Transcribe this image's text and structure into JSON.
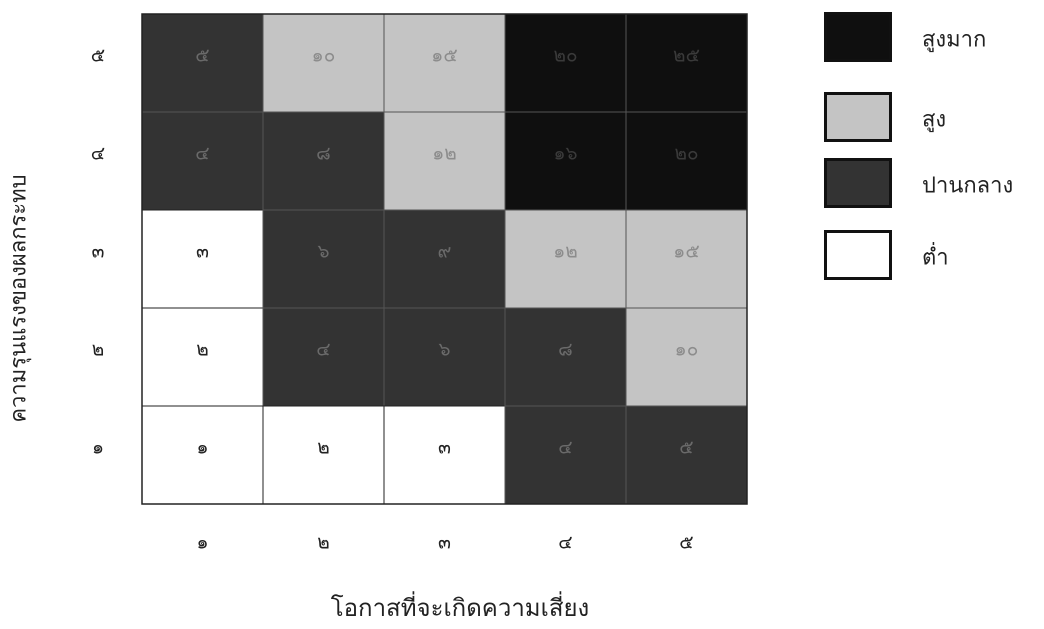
{
  "chart_data": {
    "type": "heatmap",
    "title": "",
    "xlabel": "โอกาสที่จะเกิดความเสี่ยง",
    "ylabel": "ความรุนแรงของผลกระทบ",
    "x_ticks": [
      "๑",
      "๒",
      "๓",
      "๔",
      "๕"
    ],
    "y_ticks": [
      "๑",
      "๒",
      "๓",
      "๔",
      "๕"
    ],
    "rows": [
      {
        "y": "๕",
        "values": [
          "๕",
          "๑๐",
          "๑๕",
          "๒๐",
          "๒๕"
        ],
        "levels": [
          "medium",
          "high",
          "high",
          "very_high",
          "very_high"
        ]
      },
      {
        "y": "๔",
        "values": [
          "๔",
          "๘",
          "๑๒",
          "๑๖",
          "๒๐"
        ],
        "levels": [
          "medium",
          "medium",
          "high",
          "very_high",
          "very_high"
        ]
      },
      {
        "y": "๓",
        "values": [
          "๓",
          "๖",
          "๙",
          "๑๒",
          "๑๕"
        ],
        "levels": [
          "low",
          "medium",
          "medium",
          "high",
          "high"
        ]
      },
      {
        "y": "๒",
        "values": [
          "๒",
          "๔",
          "๖",
          "๘",
          "๑๐"
        ],
        "levels": [
          "low",
          "medium",
          "medium",
          "medium",
          "high"
        ]
      },
      {
        "y": "๑",
        "values": [
          "๑",
          "๒",
          "๓",
          "๔",
          "๕"
        ],
        "levels": [
          "low",
          "low",
          "low",
          "medium",
          "medium"
        ]
      }
    ],
    "legend_position": "right",
    "legend": [
      {
        "key": "very_high",
        "label": "สูงมาก",
        "color": "#0f0f0f"
      },
      {
        "key": "high",
        "label": "สูง",
        "color": "#c4c4c4"
      },
      {
        "key": "medium",
        "label": "ปานกลาง",
        "color": "#333333"
      },
      {
        "key": "low",
        "label": "ต่ำ",
        "color": "#ffffff"
      }
    ],
    "level_text_colors": {
      "very_high": "#3a3a3a",
      "high": "#8c8c8c",
      "medium": "#6a6a6a",
      "low": "#222222"
    }
  }
}
